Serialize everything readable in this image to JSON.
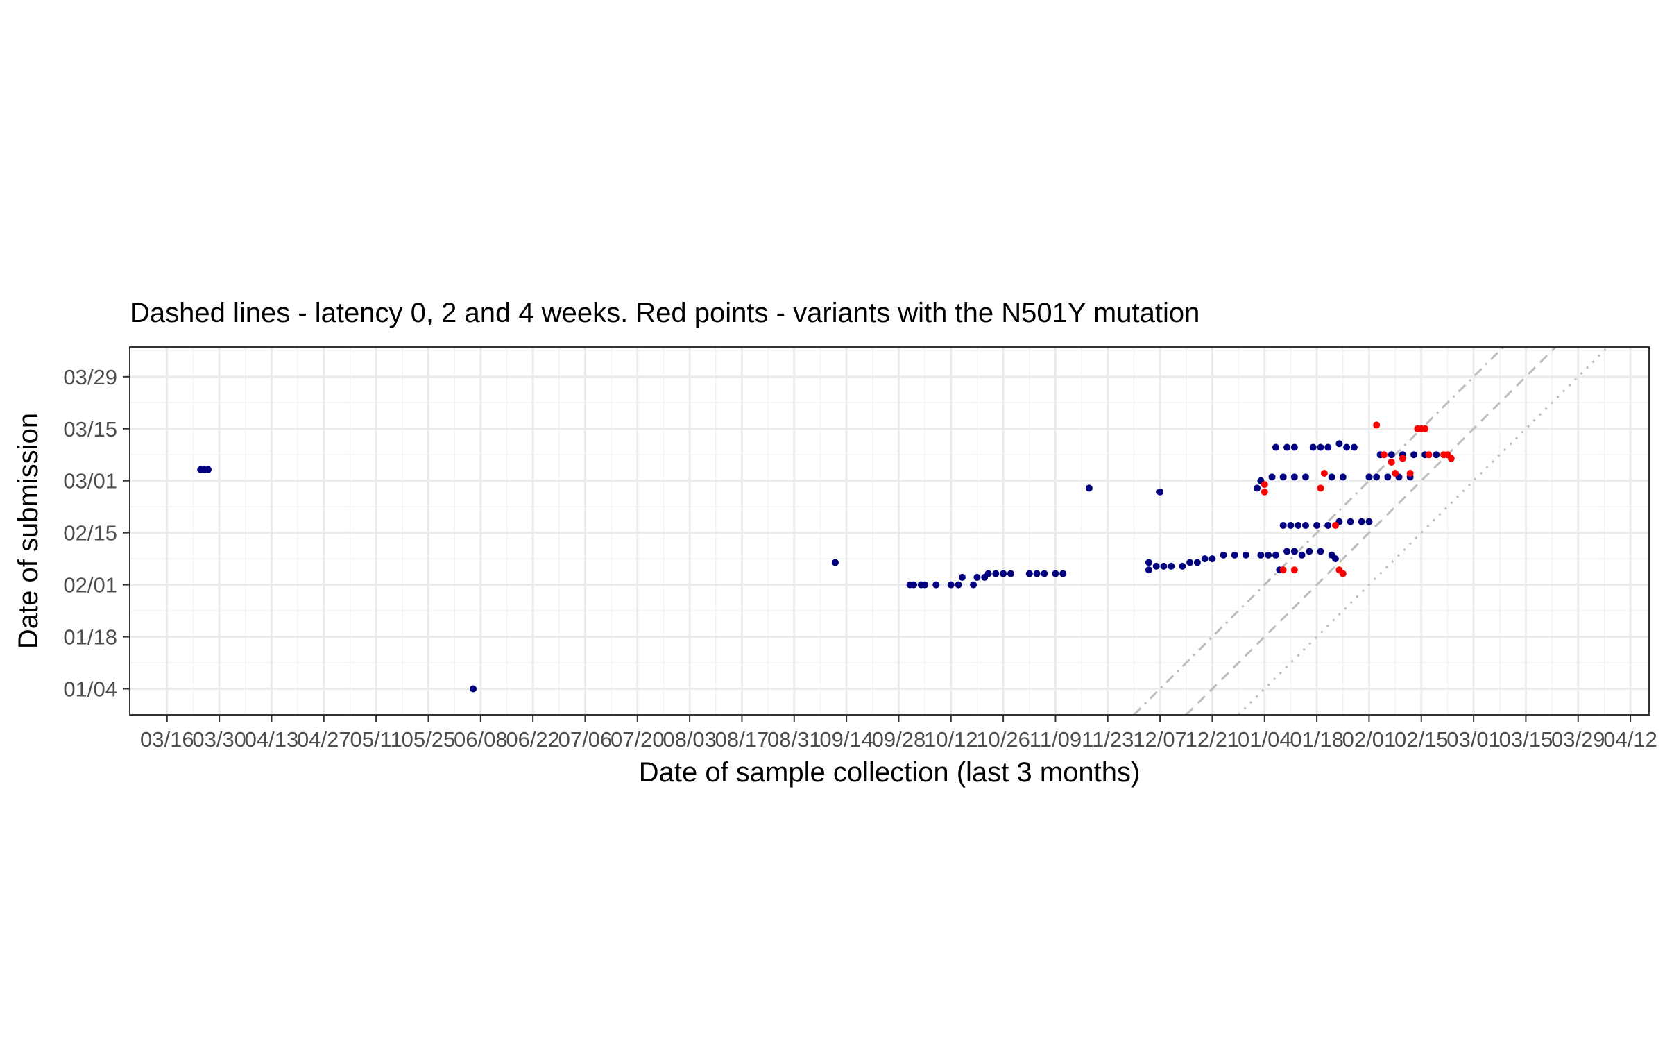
{
  "chart_data": {
    "type": "scatter",
    "title": "Dashed lines - latency 0, 2 and 4 weeks. Red points - variants with the N501Y mutation",
    "xlabel": "Date of sample collection (last 3 months)",
    "ylabel": "Date of submission",
    "x_axis": {
      "scale": "date",
      "range": [
        "2020-03-06",
        "2021-04-17"
      ],
      "ticks": [
        "2020-03-16",
        "2020-03-30",
        "2020-04-13",
        "2020-04-27",
        "2020-05-11",
        "2020-05-25",
        "2020-06-08",
        "2020-06-22",
        "2020-07-06",
        "2020-07-20",
        "2020-08-03",
        "2020-08-17",
        "2020-08-31",
        "2020-09-14",
        "2020-09-28",
        "2020-10-12",
        "2020-10-26",
        "2020-11-09",
        "2020-11-23",
        "2020-12-07",
        "2020-12-21",
        "2021-01-04",
        "2021-01-18",
        "2021-02-01",
        "2021-02-15",
        "2021-03-01",
        "2021-03-15",
        "2021-03-29",
        "2021-04-12"
      ],
      "tick_labels": [
        "03/16",
        "03/30",
        "04/13",
        "04/27",
        "05/11",
        "05/25",
        "06/08",
        "06/22",
        "07/06",
        "07/20",
        "08/03",
        "08/17",
        "08/31",
        "09/14",
        "09/28",
        "10/12",
        "10/26",
        "11/09",
        "11/23",
        "12/07",
        "12/21",
        "01/04",
        "01/18",
        "02/01",
        "02/15",
        "03/01",
        "03/15",
        "03/29",
        "04/12"
      ]
    },
    "y_axis": {
      "scale": "date",
      "range": [
        "2020-12-28",
        "2021-04-06"
      ],
      "ticks": [
        "2021-01-04",
        "2021-01-18",
        "2021-02-01",
        "2021-02-15",
        "2021-03-01",
        "2021-03-15",
        "2021-03-29"
      ],
      "tick_labels": [
        "01/04",
        "01/18",
        "02/01",
        "02/15",
        "03/01",
        "03/15",
        "03/29"
      ]
    },
    "grid": true,
    "reference_lines": [
      {
        "latency_weeks": 0,
        "style": "dotted",
        "color": "#bdbdbd"
      },
      {
        "latency_weeks": 2,
        "style": "dashed",
        "color": "#bdbdbd"
      },
      {
        "latency_weeks": 4,
        "style": "dashdot",
        "color": "#bdbdbd"
      }
    ],
    "series": [
      {
        "color": "#00007f",
        "points": [
          [
            "2020-03-25",
            "2021-03-04"
          ],
          [
            "2020-03-26",
            "2021-03-04"
          ],
          [
            "2020-03-27",
            "2021-03-04"
          ],
          [
            "2020-06-06",
            "2021-01-04"
          ],
          [
            "2020-09-11",
            "2021-02-07"
          ],
          [
            "2020-10-01",
            "2021-02-01"
          ],
          [
            "2020-10-02",
            "2021-02-01"
          ],
          [
            "2020-10-04",
            "2021-02-01"
          ],
          [
            "2020-10-05",
            "2021-02-01"
          ],
          [
            "2020-10-08",
            "2021-02-01"
          ],
          [
            "2020-10-12",
            "2021-02-01"
          ],
          [
            "2020-10-14",
            "2021-02-01"
          ],
          [
            "2020-10-15",
            "2021-02-03"
          ],
          [
            "2020-10-18",
            "2021-02-01"
          ],
          [
            "2020-10-19",
            "2021-02-03"
          ],
          [
            "2020-10-21",
            "2021-02-03"
          ],
          [
            "2020-10-22",
            "2021-02-04"
          ],
          [
            "2020-10-24",
            "2021-02-04"
          ],
          [
            "2020-10-26",
            "2021-02-04"
          ],
          [
            "2020-10-28",
            "2021-02-04"
          ],
          [
            "2020-11-02",
            "2021-02-04"
          ],
          [
            "2020-11-04",
            "2021-02-04"
          ],
          [
            "2020-11-06",
            "2021-02-04"
          ],
          [
            "2020-11-09",
            "2021-02-04"
          ],
          [
            "2020-11-11",
            "2021-02-04"
          ],
          [
            "2020-11-18",
            "2021-02-27"
          ],
          [
            "2020-12-04",
            "2021-02-05"
          ],
          [
            "2020-12-04",
            "2021-02-07"
          ],
          [
            "2020-12-06",
            "2021-02-06"
          ],
          [
            "2020-12-08",
            "2021-02-06"
          ],
          [
            "2020-12-10",
            "2021-02-06"
          ],
          [
            "2020-12-13",
            "2021-02-06"
          ],
          [
            "2020-12-15",
            "2021-02-07"
          ],
          [
            "2020-12-17",
            "2021-02-07"
          ],
          [
            "2020-12-19",
            "2021-02-08"
          ],
          [
            "2020-12-21",
            "2021-02-08"
          ],
          [
            "2020-12-24",
            "2021-02-09"
          ],
          [
            "2020-12-27",
            "2021-02-09"
          ],
          [
            "2020-12-30",
            "2021-02-09"
          ],
          [
            "2020-12-07",
            "2021-02-26"
          ],
          [
            "2021-01-03",
            "2021-02-09"
          ],
          [
            "2021-01-05",
            "2021-02-09"
          ],
          [
            "2021-01-07",
            "2021-02-09"
          ],
          [
            "2021-01-10",
            "2021-02-10"
          ],
          [
            "2021-01-12",
            "2021-02-10"
          ],
          [
            "2021-01-14",
            "2021-02-09"
          ],
          [
            "2021-01-16",
            "2021-02-10"
          ],
          [
            "2021-01-19",
            "2021-02-10"
          ],
          [
            "2021-01-22",
            "2021-02-09"
          ],
          [
            "2021-01-23",
            "2021-02-08"
          ],
          [
            "2021-01-08",
            "2021-02-05"
          ],
          [
            "2021-01-09",
            "2021-02-17"
          ],
          [
            "2021-01-11",
            "2021-02-17"
          ],
          [
            "2021-01-13",
            "2021-02-17"
          ],
          [
            "2021-01-15",
            "2021-02-17"
          ],
          [
            "2021-01-18",
            "2021-02-17"
          ],
          [
            "2021-01-21",
            "2021-02-17"
          ],
          [
            "2021-01-24",
            "2021-02-18"
          ],
          [
            "2021-01-27",
            "2021-02-18"
          ],
          [
            "2021-01-30",
            "2021-02-18"
          ],
          [
            "2021-02-01",
            "2021-02-18"
          ],
          [
            "2021-01-02",
            "2021-02-27"
          ],
          [
            "2021-01-03",
            "2021-03-01"
          ],
          [
            "2021-01-06",
            "2021-03-02"
          ],
          [
            "2021-01-09",
            "2021-03-02"
          ],
          [
            "2021-01-12",
            "2021-03-02"
          ],
          [
            "2021-01-15",
            "2021-03-02"
          ],
          [
            "2021-01-22",
            "2021-03-02"
          ],
          [
            "2021-01-25",
            "2021-03-02"
          ],
          [
            "2021-02-01",
            "2021-03-02"
          ],
          [
            "2021-02-03",
            "2021-03-02"
          ],
          [
            "2021-02-06",
            "2021-03-02"
          ],
          [
            "2021-02-09",
            "2021-03-02"
          ],
          [
            "2021-02-12",
            "2021-03-02"
          ],
          [
            "2021-01-07",
            "2021-03-10"
          ],
          [
            "2021-01-10",
            "2021-03-10"
          ],
          [
            "2021-01-12",
            "2021-03-10"
          ],
          [
            "2021-01-17",
            "2021-03-10"
          ],
          [
            "2021-01-19",
            "2021-03-10"
          ],
          [
            "2021-01-21",
            "2021-03-10"
          ],
          [
            "2021-01-24",
            "2021-03-11"
          ],
          [
            "2021-01-26",
            "2021-03-10"
          ],
          [
            "2021-01-28",
            "2021-03-10"
          ],
          [
            "2021-02-04",
            "2021-03-08"
          ],
          [
            "2021-02-07",
            "2021-03-08"
          ],
          [
            "2021-02-10",
            "2021-03-08"
          ],
          [
            "2021-02-13",
            "2021-03-08"
          ],
          [
            "2021-02-16",
            "2021-03-08"
          ],
          [
            "2021-02-19",
            "2021-03-08"
          ]
        ]
      },
      {
        "color": "#ff0000",
        "points": [
          [
            "2021-01-04",
            "2021-02-26"
          ],
          [
            "2021-01-04",
            "2021-02-28"
          ],
          [
            "2021-01-09",
            "2021-02-05"
          ],
          [
            "2021-01-12",
            "2021-02-05"
          ],
          [
            "2021-01-19",
            "2021-02-27"
          ],
          [
            "2021-01-20",
            "2021-03-03"
          ],
          [
            "2021-01-23",
            "2021-02-17"
          ],
          [
            "2021-01-24",
            "2021-02-05"
          ],
          [
            "2021-01-25",
            "2021-02-04"
          ],
          [
            "2021-02-03",
            "2021-03-16"
          ],
          [
            "2021-02-05",
            "2021-03-08"
          ],
          [
            "2021-02-07",
            "2021-03-06"
          ],
          [
            "2021-02-08",
            "2021-03-03"
          ],
          [
            "2021-02-10",
            "2021-03-07"
          ],
          [
            "2021-02-12",
            "2021-03-03"
          ],
          [
            "2021-02-14",
            "2021-03-15"
          ],
          [
            "2021-02-15",
            "2021-03-15"
          ],
          [
            "2021-02-16",
            "2021-03-15"
          ],
          [
            "2021-02-17",
            "2021-03-08"
          ],
          [
            "2021-02-21",
            "2021-03-08"
          ],
          [
            "2021-02-22",
            "2021-03-08"
          ],
          [
            "2021-02-23",
            "2021-03-07"
          ]
        ]
      }
    ]
  }
}
